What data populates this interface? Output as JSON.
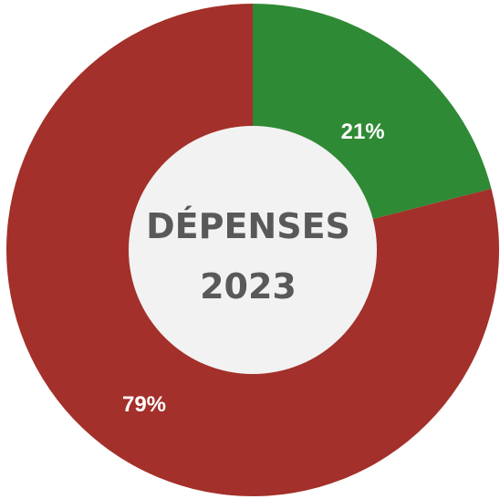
{
  "chart_data": {
    "type": "pie",
    "variant": "donut",
    "center_title": [
      "DÉPENSES",
      "2023"
    ],
    "slices": [
      {
        "value": 21,
        "label": "21%",
        "color": "#2f8a35"
      },
      {
        "value": 79,
        "label": "79%",
        "color": "#a3302a"
      }
    ],
    "center_color": "#f2f2f2",
    "start_angle": "12 o'clock",
    "direction": "clockwise"
  }
}
